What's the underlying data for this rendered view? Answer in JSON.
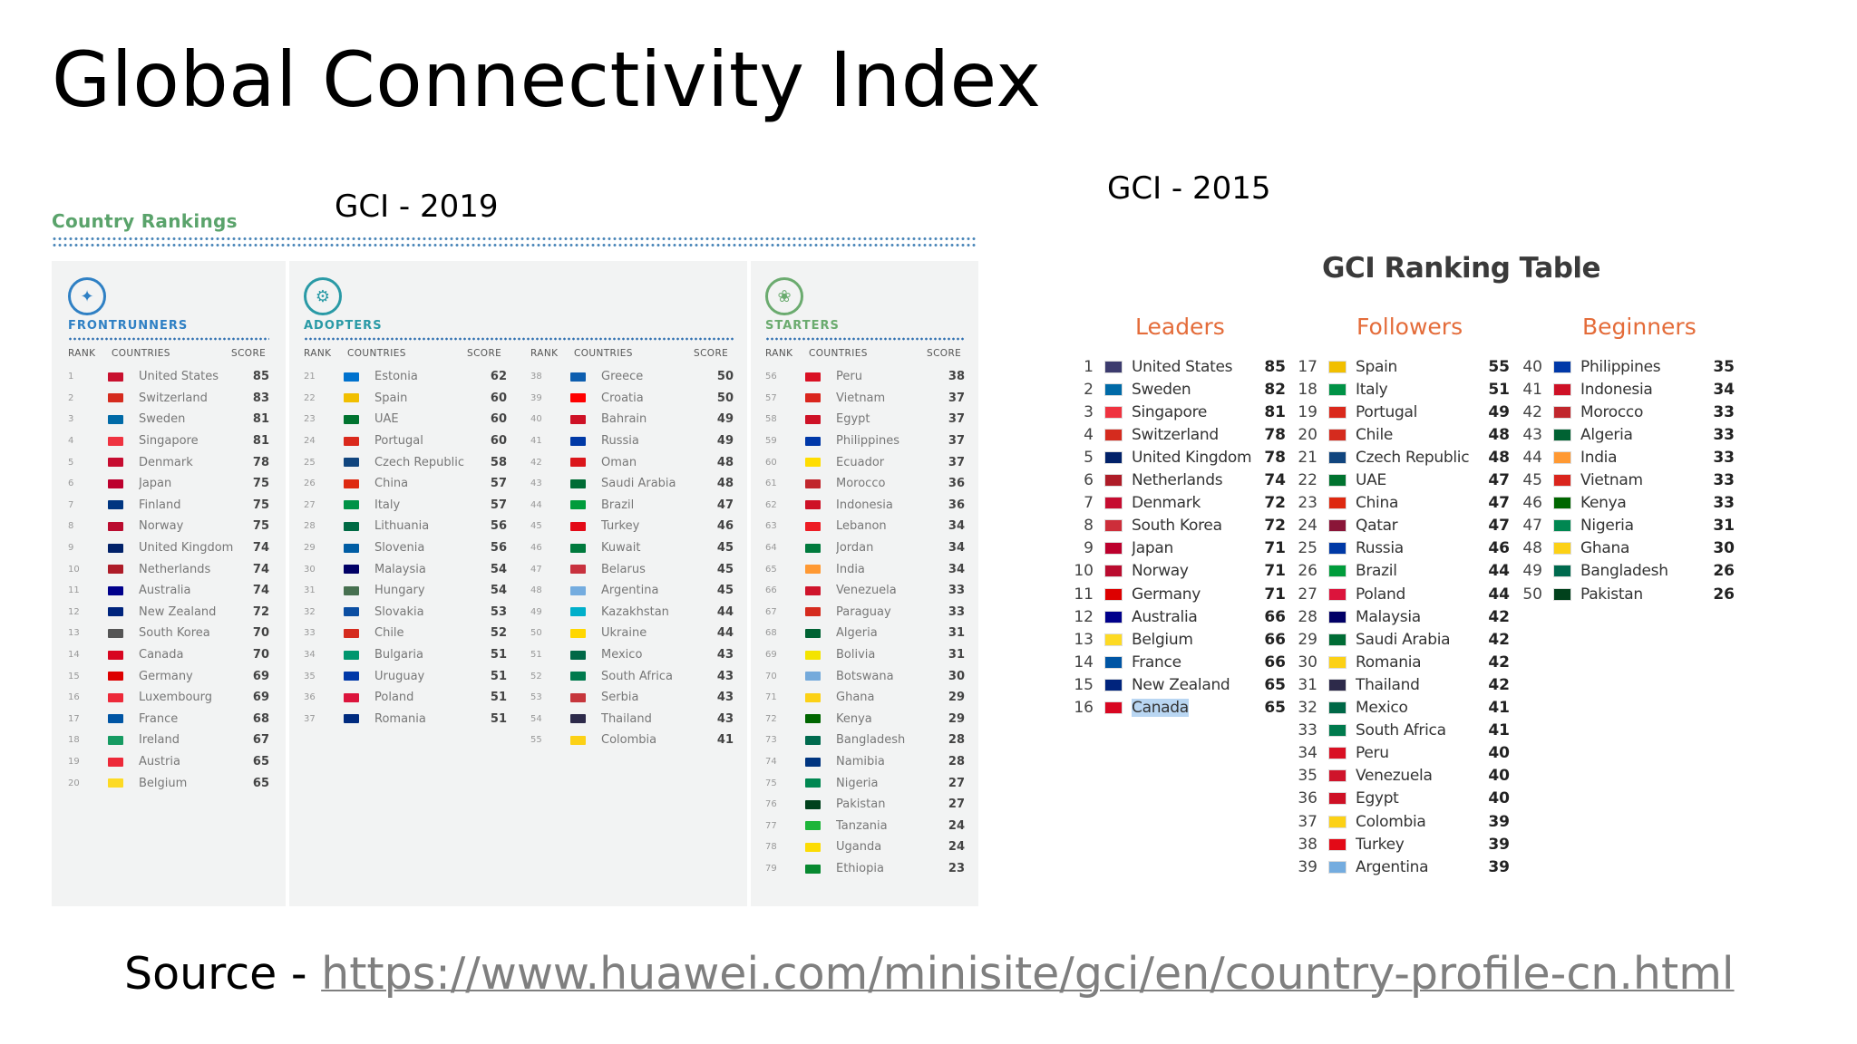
{
  "slide": {
    "title": "Global Connectivity Index",
    "label_2019": "GCI - 2019",
    "label_2015": "GCI - 2015",
    "source_prefix": "Source - ",
    "source_link": "https://www.huawei.com/minisite/gci/en/country-profile-cn.html"
  },
  "gci2019": {
    "heading": "Country Rankings",
    "col_rank": "RANK",
    "col_countries": "COUNTRIES",
    "col_score": "SCORE",
    "frontrunners": {
      "title": "FRONTRUNNERS",
      "color": "#2f80c4",
      "rows": [
        {
          "rank": "1",
          "country": "United States",
          "score": "85",
          "flag": "#c8102e"
        },
        {
          "rank": "2",
          "country": "Switzerland",
          "score": "83",
          "flag": "#d52b1e"
        },
        {
          "rank": "3",
          "country": "Sweden",
          "score": "81",
          "flag": "#006aa7"
        },
        {
          "rank": "4",
          "country": "Singapore",
          "score": "81",
          "flag": "#ef3340"
        },
        {
          "rank": "5",
          "country": "Denmark",
          "score": "78",
          "flag": "#c60c30"
        },
        {
          "rank": "6",
          "country": "Japan",
          "score": "75",
          "flag": "#bc002d"
        },
        {
          "rank": "7",
          "country": "Finland",
          "score": "75",
          "flag": "#003580"
        },
        {
          "rank": "8",
          "country": "Norway",
          "score": "75",
          "flag": "#ba0c2f"
        },
        {
          "rank": "9",
          "country": "United Kingdom",
          "score": "74",
          "flag": "#012169"
        },
        {
          "rank": "10",
          "country": "Netherlands",
          "score": "74",
          "flag": "#ae1c28"
        },
        {
          "rank": "11",
          "country": "Australia",
          "score": "74",
          "flag": "#00008b"
        },
        {
          "rank": "12",
          "country": "New Zealand",
          "score": "72",
          "flag": "#00247d"
        },
        {
          "rank": "13",
          "country": "South Korea",
          "score": "70",
          "flag": "#555555"
        },
        {
          "rank": "14",
          "country": "Canada",
          "score": "70",
          "flag": "#d80621"
        },
        {
          "rank": "15",
          "country": "Germany",
          "score": "69",
          "flag": "#dd0000"
        },
        {
          "rank": "16",
          "country": "Luxembourg",
          "score": "69",
          "flag": "#ed2939"
        },
        {
          "rank": "17",
          "country": "France",
          "score": "68",
          "flag": "#0055a4"
        },
        {
          "rank": "18",
          "country": "Ireland",
          "score": "67",
          "flag": "#169b62"
        },
        {
          "rank": "19",
          "country": "Austria",
          "score": "65",
          "flag": "#ed2939"
        },
        {
          "rank": "20",
          "country": "Belgium",
          "score": "65",
          "flag": "#fdda24"
        }
      ]
    },
    "adopters": {
      "title": "ADOPTERS",
      "color": "#2a9aa6",
      "rows_a": [
        {
          "rank": "21",
          "country": "Estonia",
          "score": "62",
          "flag": "#0072ce"
        },
        {
          "rank": "22",
          "country": "Spain",
          "score": "60",
          "flag": "#f1bf00"
        },
        {
          "rank": "23",
          "country": "UAE",
          "score": "60",
          "flag": "#00732f"
        },
        {
          "rank": "24",
          "country": "Portugal",
          "score": "60",
          "flag": "#da291c"
        },
        {
          "rank": "25",
          "country": "Czech Republic",
          "score": "58",
          "flag": "#11457e"
        },
        {
          "rank": "26",
          "country": "China",
          "score": "57",
          "flag": "#de2910"
        },
        {
          "rank": "27",
          "country": "Italy",
          "score": "57",
          "flag": "#009246"
        },
        {
          "rank": "28",
          "country": "Lithuania",
          "score": "56",
          "flag": "#006a44"
        },
        {
          "rank": "29",
          "country": "Slovenia",
          "score": "56",
          "flag": "#005da4"
        },
        {
          "rank": "30",
          "country": "Malaysia",
          "score": "54",
          "flag": "#010066"
        },
        {
          "rank": "31",
          "country": "Hungary",
          "score": "54",
          "flag": "#477050"
        },
        {
          "rank": "32",
          "country": "Slovakia",
          "score": "53",
          "flag": "#0b4ea2"
        },
        {
          "rank": "33",
          "country": "Chile",
          "score": "52",
          "flag": "#d52b1e"
        },
        {
          "rank": "34",
          "country": "Bulgaria",
          "score": "51",
          "flag": "#00966e"
        },
        {
          "rank": "35",
          "country": "Uruguay",
          "score": "51",
          "flag": "#0038a8"
        },
        {
          "rank": "36",
          "country": "Poland",
          "score": "51",
          "flag": "#dc143c"
        },
        {
          "rank": "37",
          "country": "Romania",
          "score": "51",
          "flag": "#002b7f"
        }
      ],
      "rows_b": [
        {
          "rank": "38",
          "country": "Greece",
          "score": "50",
          "flag": "#0d5eaf"
        },
        {
          "rank": "39",
          "country": "Croatia",
          "score": "50",
          "flag": "#ff0000"
        },
        {
          "rank": "40",
          "country": "Bahrain",
          "score": "49",
          "flag": "#ce1126"
        },
        {
          "rank": "41",
          "country": "Russia",
          "score": "49",
          "flag": "#0039a6"
        },
        {
          "rank": "42",
          "country": "Oman",
          "score": "48",
          "flag": "#db161b"
        },
        {
          "rank": "43",
          "country": "Saudi Arabia",
          "score": "48",
          "flag": "#006c35"
        },
        {
          "rank": "44",
          "country": "Brazil",
          "score": "47",
          "flag": "#009c3b"
        },
        {
          "rank": "45",
          "country": "Turkey",
          "score": "46",
          "flag": "#e30a17"
        },
        {
          "rank": "46",
          "country": "Kuwait",
          "score": "45",
          "flag": "#007a3d"
        },
        {
          "rank": "47",
          "country": "Belarus",
          "score": "45",
          "flag": "#c8313e"
        },
        {
          "rank": "48",
          "country": "Argentina",
          "score": "45",
          "flag": "#74acdf"
        },
        {
          "rank": "49",
          "country": "Kazakhstan",
          "score": "44",
          "flag": "#00afca"
        },
        {
          "rank": "50",
          "country": "Ukraine",
          "score": "44",
          "flag": "#ffd700"
        },
        {
          "rank": "51",
          "country": "Mexico",
          "score": "43",
          "flag": "#006847"
        },
        {
          "rank": "52",
          "country": "South Africa",
          "score": "43",
          "flag": "#007a4d"
        },
        {
          "rank": "53",
          "country": "Serbia",
          "score": "43",
          "flag": "#c6363c"
        },
        {
          "rank": "54",
          "country": "Thailand",
          "score": "43",
          "flag": "#2d2a4a"
        },
        {
          "rank": "55",
          "country": "Colombia",
          "score": "41",
          "flag": "#fcd116"
        }
      ]
    },
    "starters": {
      "title": "STARTERS",
      "color": "#6bab6f",
      "rows": [
        {
          "rank": "56",
          "country": "Peru",
          "score": "38",
          "flag": "#d91023"
        },
        {
          "rank": "57",
          "country": "Vietnam",
          "score": "37",
          "flag": "#da251d"
        },
        {
          "rank": "58",
          "country": "Egypt",
          "score": "37",
          "flag": "#ce1126"
        },
        {
          "rank": "59",
          "country": "Philippines",
          "score": "37",
          "flag": "#0038a8"
        },
        {
          "rank": "60",
          "country": "Ecuador",
          "score": "37",
          "flag": "#ffdd00"
        },
        {
          "rank": "61",
          "country": "Morocco",
          "score": "36",
          "flag": "#c1272d"
        },
        {
          "rank": "62",
          "country": "Indonesia",
          "score": "36",
          "flag": "#ce1126"
        },
        {
          "rank": "63",
          "country": "Lebanon",
          "score": "34",
          "flag": "#ed1c24"
        },
        {
          "rank": "64",
          "country": "Jordan",
          "score": "34",
          "flag": "#007a3d"
        },
        {
          "rank": "65",
          "country": "India",
          "score": "34",
          "flag": "#ff9933"
        },
        {
          "rank": "66",
          "country": "Venezuela",
          "score": "33",
          "flag": "#cf142b"
        },
        {
          "rank": "67",
          "country": "Paraguay",
          "score": "33",
          "flag": "#d52b1e"
        },
        {
          "rank": "68",
          "country": "Algeria",
          "score": "31",
          "flag": "#006233"
        },
        {
          "rank": "69",
          "country": "Bolivia",
          "score": "31",
          "flag": "#f4e400"
        },
        {
          "rank": "70",
          "country": "Botswana",
          "score": "30",
          "flag": "#75aadb"
        },
        {
          "rank": "71",
          "country": "Ghana",
          "score": "29",
          "flag": "#fcd116"
        },
        {
          "rank": "72",
          "country": "Kenya",
          "score": "29",
          "flag": "#006600"
        },
        {
          "rank": "73",
          "country": "Bangladesh",
          "score": "28",
          "flag": "#006a4e"
        },
        {
          "rank": "74",
          "country": "Namibia",
          "score": "28",
          "flag": "#003580"
        },
        {
          "rank": "75",
          "country": "Nigeria",
          "score": "27",
          "flag": "#008751"
        },
        {
          "rank": "76",
          "country": "Pakistan",
          "score": "27",
          "flag": "#01411c"
        },
        {
          "rank": "77",
          "country": "Tanzania",
          "score": "24",
          "flag": "#1eb53a"
        },
        {
          "rank": "78",
          "country": "Uganda",
          "score": "24",
          "flag": "#fcdc04"
        },
        {
          "rank": "79",
          "country": "Ethiopia",
          "score": "23",
          "flag": "#078930"
        }
      ]
    }
  },
  "gci2015": {
    "title": "GCI Ranking Table",
    "leaders": {
      "title": "Leaders",
      "rows": [
        {
          "rank": "1",
          "country": "United States",
          "score": "85",
          "flag": "#3c3b6e"
        },
        {
          "rank": "2",
          "country": "Sweden",
          "score": "82",
          "flag": "#006aa7"
        },
        {
          "rank": "3",
          "country": "Singapore",
          "score": "81",
          "flag": "#ef3340"
        },
        {
          "rank": "4",
          "country": "Switzerland",
          "score": "78",
          "flag": "#d52b1e"
        },
        {
          "rank": "5",
          "country": "United Kingdom",
          "score": "78",
          "flag": "#012169"
        },
        {
          "rank": "6",
          "country": "Netherlands",
          "score": "74",
          "flag": "#ae1c28"
        },
        {
          "rank": "7",
          "country": "Denmark",
          "score": "72",
          "flag": "#c60c30"
        },
        {
          "rank": "8",
          "country": "South Korea",
          "score": "72",
          "flag": "#cd2e3a"
        },
        {
          "rank": "9",
          "country": "Japan",
          "score": "71",
          "flag": "#bc002d"
        },
        {
          "rank": "10",
          "country": "Norway",
          "score": "71",
          "flag": "#ba0c2f"
        },
        {
          "rank": "11",
          "country": "Germany",
          "score": "71",
          "flag": "#dd0000"
        },
        {
          "rank": "12",
          "country": "Australia",
          "score": "66",
          "flag": "#00008b"
        },
        {
          "rank": "13",
          "country": "Belgium",
          "score": "66",
          "flag": "#fdda24"
        },
        {
          "rank": "14",
          "country": "France",
          "score": "66",
          "flag": "#0055a4"
        },
        {
          "rank": "15",
          "country": "New Zealand",
          "score": "65",
          "flag": "#00247d"
        },
        {
          "rank": "16",
          "country": "Canada",
          "score": "65",
          "flag": "#d80621"
        }
      ]
    },
    "followers": {
      "title": "Followers",
      "rows": [
        {
          "rank": "17",
          "country": "Spain",
          "score": "55",
          "flag": "#f1bf00"
        },
        {
          "rank": "18",
          "country": "Italy",
          "score": "51",
          "flag": "#009246"
        },
        {
          "rank": "19",
          "country": "Portugal",
          "score": "49",
          "flag": "#da291c"
        },
        {
          "rank": "20",
          "country": "Chile",
          "score": "48",
          "flag": "#d52b1e"
        },
        {
          "rank": "21",
          "country": "Czech Republic",
          "score": "48",
          "flag": "#11457e"
        },
        {
          "rank": "22",
          "country": "UAE",
          "score": "47",
          "flag": "#00732f"
        },
        {
          "rank": "23",
          "country": "China",
          "score": "47",
          "flag": "#de2910"
        },
        {
          "rank": "24",
          "country": "Qatar",
          "score": "47",
          "flag": "#8a1538"
        },
        {
          "rank": "25",
          "country": "Russia",
          "score": "46",
          "flag": "#0039a6"
        },
        {
          "rank": "26",
          "country": "Brazil",
          "score": "44",
          "flag": "#009c3b"
        },
        {
          "rank": "27",
          "country": "Poland",
          "score": "44",
          "flag": "#dc143c"
        },
        {
          "rank": "28",
          "country": "Malaysia",
          "score": "42",
          "flag": "#010066"
        },
        {
          "rank": "29",
          "country": "Saudi Arabia",
          "score": "42",
          "flag": "#006c35"
        },
        {
          "rank": "30",
          "country": "Romania",
          "score": "42",
          "flag": "#fcd116"
        },
        {
          "rank": "31",
          "country": "Thailand",
          "score": "42",
          "flag": "#2d2a4a"
        },
        {
          "rank": "32",
          "country": "Mexico",
          "score": "41",
          "flag": "#006847"
        },
        {
          "rank": "33",
          "country": "South Africa",
          "score": "41",
          "flag": "#007a4d"
        },
        {
          "rank": "34",
          "country": "Peru",
          "score": "40",
          "flag": "#d91023"
        },
        {
          "rank": "35",
          "country": "Venezuela",
          "score": "40",
          "flag": "#cf142b"
        },
        {
          "rank": "36",
          "country": "Egypt",
          "score": "40",
          "flag": "#ce1126"
        },
        {
          "rank": "37",
          "country": "Colombia",
          "score": "39",
          "flag": "#fcd116"
        },
        {
          "rank": "38",
          "country": "Turkey",
          "score": "39",
          "flag": "#e30a17"
        },
        {
          "rank": "39",
          "country": "Argentina",
          "score": "39",
          "flag": "#74acdf"
        }
      ]
    },
    "beginners": {
      "title": "Beginners",
      "rows": [
        {
          "rank": "40",
          "country": "Philippines",
          "score": "35",
          "flag": "#0038a8"
        },
        {
          "rank": "41",
          "country": "Indonesia",
          "score": "34",
          "flag": "#ce1126"
        },
        {
          "rank": "42",
          "country": "Morocco",
          "score": "33",
          "flag": "#c1272d"
        },
        {
          "rank": "43",
          "country": "Algeria",
          "score": "33",
          "flag": "#006233"
        },
        {
          "rank": "44",
          "country": "India",
          "score": "33",
          "flag": "#ff9933"
        },
        {
          "rank": "45",
          "country": "Vietnam",
          "score": "33",
          "flag": "#da251d"
        },
        {
          "rank": "46",
          "country": "Kenya",
          "score": "33",
          "flag": "#006600"
        },
        {
          "rank": "47",
          "country": "Nigeria",
          "score": "31",
          "flag": "#008751"
        },
        {
          "rank": "48",
          "country": "Ghana",
          "score": "30",
          "flag": "#fcd116"
        },
        {
          "rank": "49",
          "country": "Bangladesh",
          "score": "26",
          "flag": "#006a4e"
        },
        {
          "rank": "50",
          "country": "Pakistan",
          "score": "26",
          "flag": "#01411c"
        }
      ]
    }
  }
}
